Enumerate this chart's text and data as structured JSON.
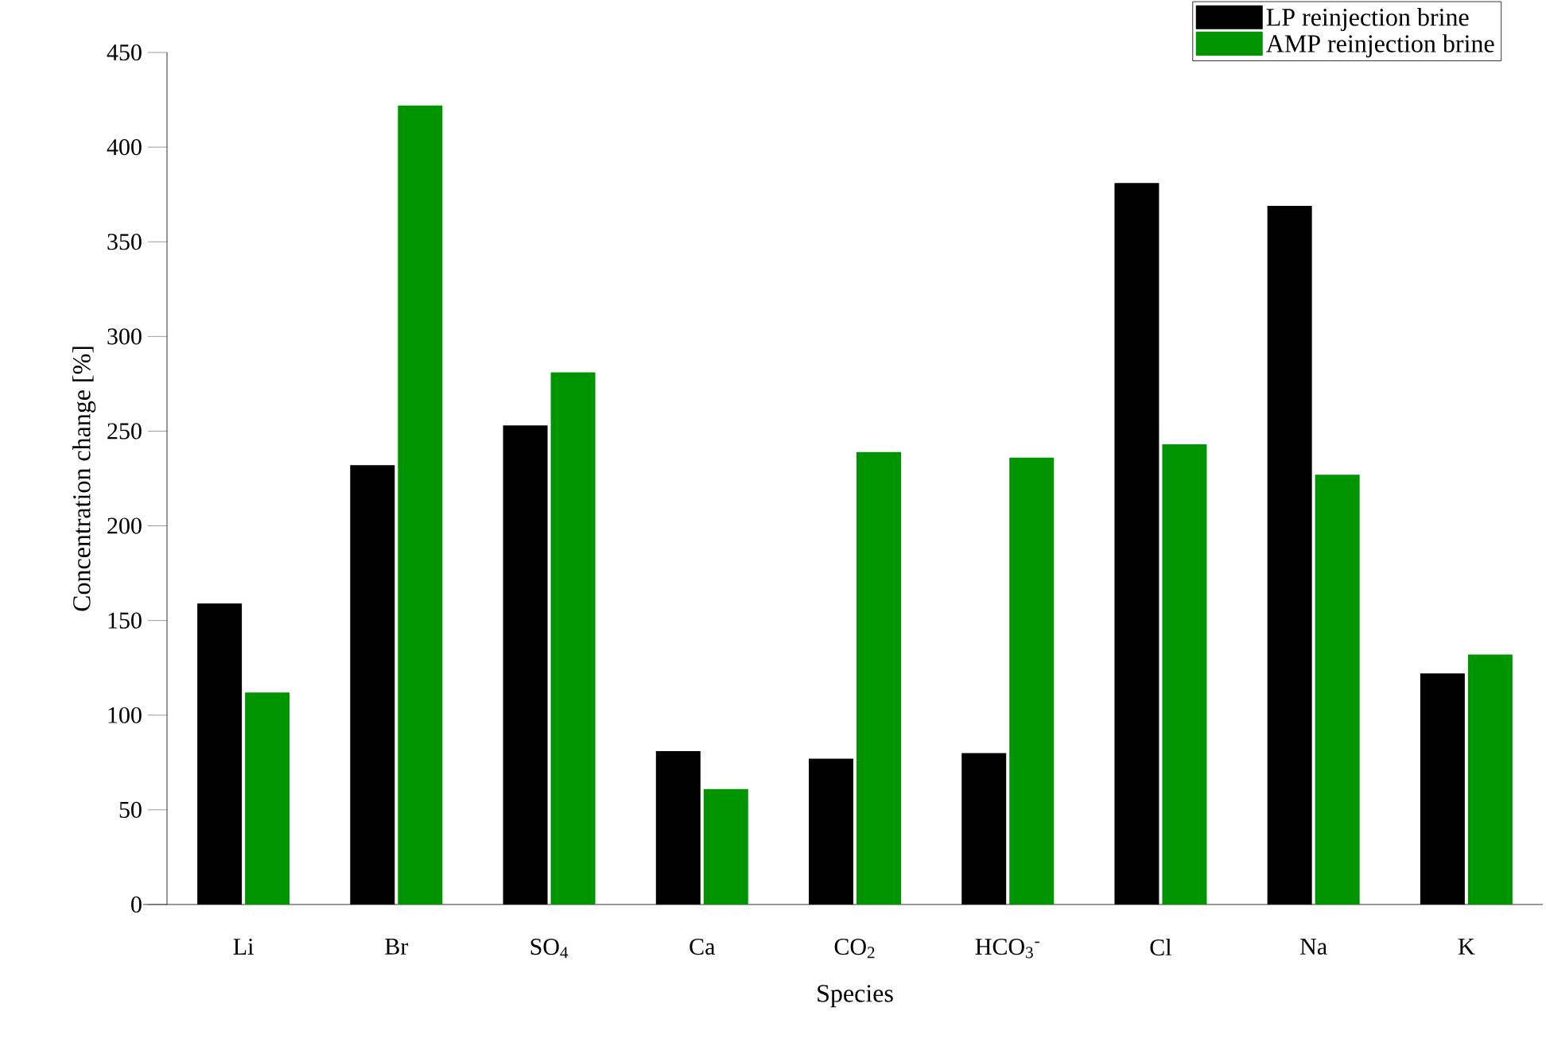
{
  "chart_data": {
    "type": "bar",
    "xlabel": "Species",
    "ylabel": "Concentration change [%]",
    "categories": [
      "Li",
      "Br",
      "SO$_{4}$",
      "Ca",
      "CO$_{2}$",
      "HCO$_{3}$$^{-}$",
      "Cl",
      "Na",
      "K"
    ],
    "series": [
      {
        "name": "LP reinjection brine",
        "color": "#000000",
        "values": [
          159,
          232,
          253,
          81,
          77,
          80,
          381,
          369,
          122
        ]
      },
      {
        "name": "AMP reinjection brine",
        "color": "#009400",
        "values": [
          112,
          422,
          281,
          61,
          239,
          236,
          243,
          227,
          132
        ]
      }
    ],
    "ylim": [
      0,
      450
    ],
    "yticks": [
      0,
      50,
      100,
      150,
      200,
      250,
      300,
      350,
      400,
      450
    ],
    "grid": false,
    "legend": "top right"
  }
}
